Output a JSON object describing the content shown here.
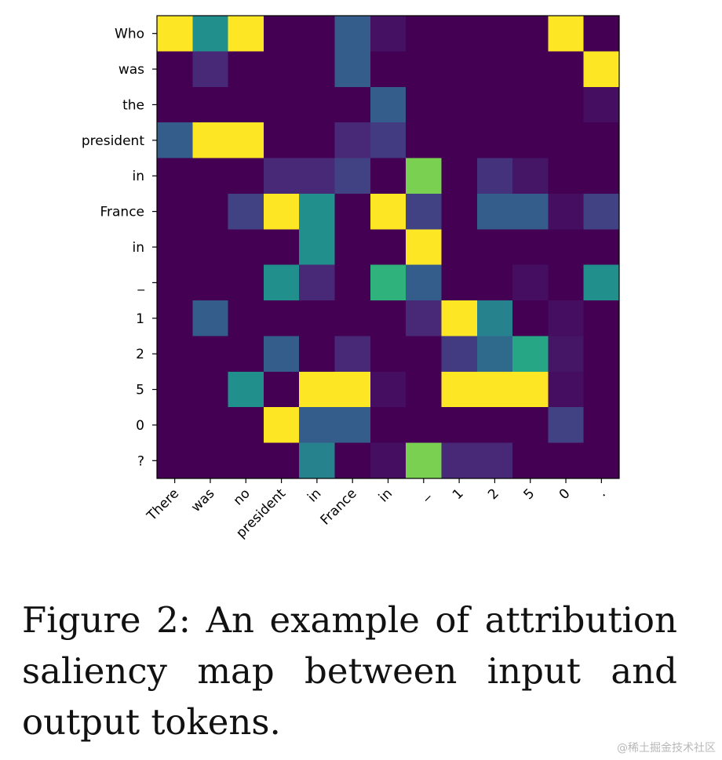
{
  "chart_data": {
    "type": "heatmap",
    "title": "",
    "xlabel": "",
    "ylabel": "",
    "x_tokens": [
      "There",
      "was",
      "no",
      "president",
      "in",
      "France",
      "in",
      "_",
      "1",
      "2",
      "5",
      "0",
      "."
    ],
    "y_tokens": [
      "Who",
      "was",
      "the",
      "president",
      "in",
      "France",
      "in",
      "_",
      "1",
      "2",
      "5",
      "0",
      "?"
    ],
    "colormap": "viridis",
    "value_range": [
      0,
      1
    ],
    "values": [
      [
        1.0,
        0.5,
        1.0,
        0.0,
        0.0,
        0.3,
        0.05,
        0.0,
        0.0,
        0.0,
        0.0,
        1.0,
        0.0
      ],
      [
        0.0,
        0.12,
        0.0,
        0.0,
        0.0,
        0.3,
        0.0,
        0.0,
        0.0,
        0.0,
        0.0,
        0.0,
        1.0
      ],
      [
        0.0,
        0.0,
        0.0,
        0.0,
        0.0,
        0.0,
        0.3,
        0.0,
        0.0,
        0.0,
        0.0,
        0.0,
        0.04
      ],
      [
        0.3,
        1.0,
        1.0,
        0.0,
        0.0,
        0.12,
        0.18,
        0.0,
        0.0,
        0.0,
        0.0,
        0.0,
        0.0
      ],
      [
        0.0,
        0.0,
        0.0,
        0.12,
        0.12,
        0.2,
        0.0,
        0.8,
        0.0,
        0.15,
        0.06,
        0.0,
        0.0
      ],
      [
        0.0,
        0.0,
        0.2,
        1.0,
        0.5,
        0.0,
        1.0,
        0.2,
        0.0,
        0.3,
        0.3,
        0.04,
        0.2
      ],
      [
        0.0,
        0.0,
        0.0,
        0.0,
        0.5,
        0.0,
        0.0,
        1.0,
        0.0,
        0.0,
        0.0,
        0.0,
        0.0
      ],
      [
        0.0,
        0.0,
        0.0,
        0.5,
        0.12,
        0.0,
        0.65,
        0.3,
        0.0,
        0.0,
        0.04,
        0.0,
        0.5
      ],
      [
        0.0,
        0.3,
        0.0,
        0.0,
        0.0,
        0.0,
        0.0,
        0.12,
        1.0,
        0.45,
        0.0,
        0.04,
        0.0
      ],
      [
        0.0,
        0.0,
        0.0,
        0.3,
        0.0,
        0.12,
        0.0,
        0.0,
        0.18,
        0.35,
        0.6,
        0.06,
        0.0
      ],
      [
        0.0,
        0.0,
        0.5,
        0.0,
        1.0,
        1.0,
        0.04,
        0.0,
        1.0,
        1.0,
        1.0,
        0.04,
        0.0
      ],
      [
        0.0,
        0.0,
        0.0,
        1.0,
        0.3,
        0.3,
        0.0,
        0.0,
        0.0,
        0.0,
        0.0,
        0.2,
        0.0
      ],
      [
        0.0,
        0.0,
        0.0,
        0.0,
        0.45,
        0.0,
        0.04,
        0.8,
        0.12,
        0.12,
        0.0,
        0.0,
        0.0
      ]
    ]
  },
  "caption": "Figure 2:  An example of attribution saliency map between input and output tokens.",
  "watermark": "@稀土掘金技术社区"
}
